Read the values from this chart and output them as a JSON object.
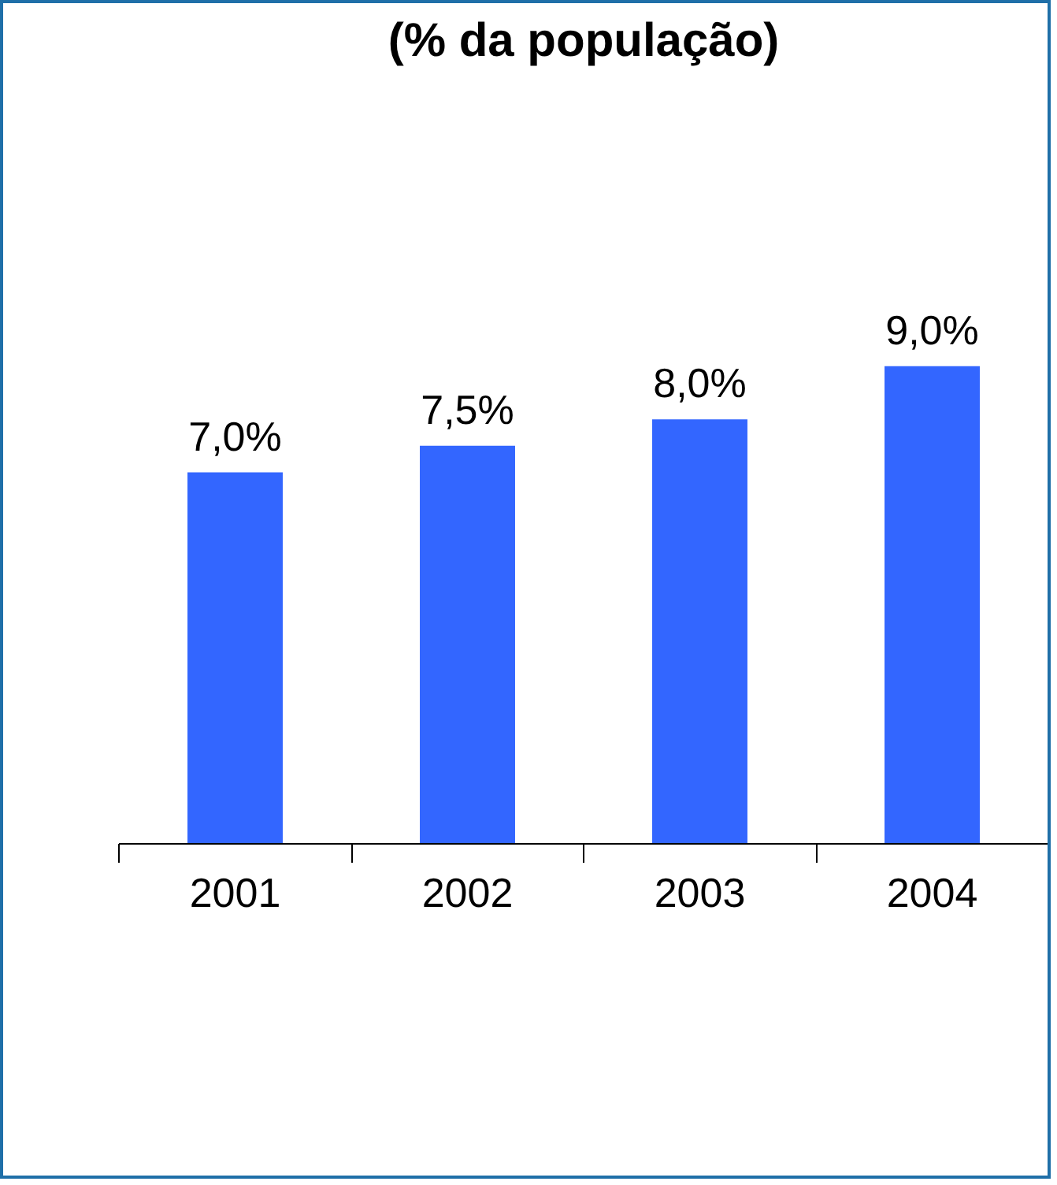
{
  "chart_data": {
    "type": "bar",
    "title": "(% da população)",
    "categories": [
      "2001",
      "2002",
      "2003",
      "2004"
    ],
    "values": [
      7.0,
      7.5,
      8.0,
      9.0
    ],
    "value_labels": [
      "7,0%",
      "7,5%",
      "8,0%",
      "9,0%"
    ],
    "color": "#3366ff",
    "grid": false
  }
}
